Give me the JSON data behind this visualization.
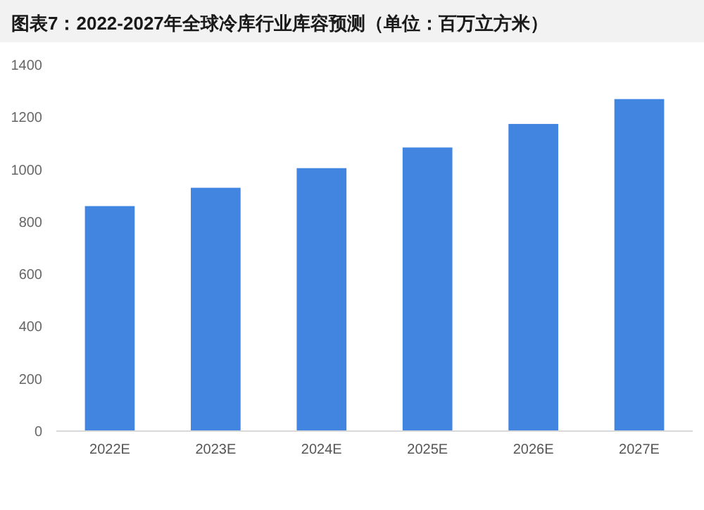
{
  "chart_data": {
    "type": "bar",
    "title": "图表7：2022-2027年全球冷库行业库容预测（单位：百万立方米）",
    "categories": [
      "2022E",
      "2023E",
      "2024E",
      "2025E",
      "2026E",
      "2027E"
    ],
    "values": [
      860,
      930,
      1005,
      1084,
      1174,
      1269
    ],
    "color": "#4285e0",
    "ylim": [
      0,
      1400
    ],
    "yticks": [
      0,
      200,
      400,
      600,
      800,
      1000,
      1200,
      1400
    ],
    "grid": false
  }
}
